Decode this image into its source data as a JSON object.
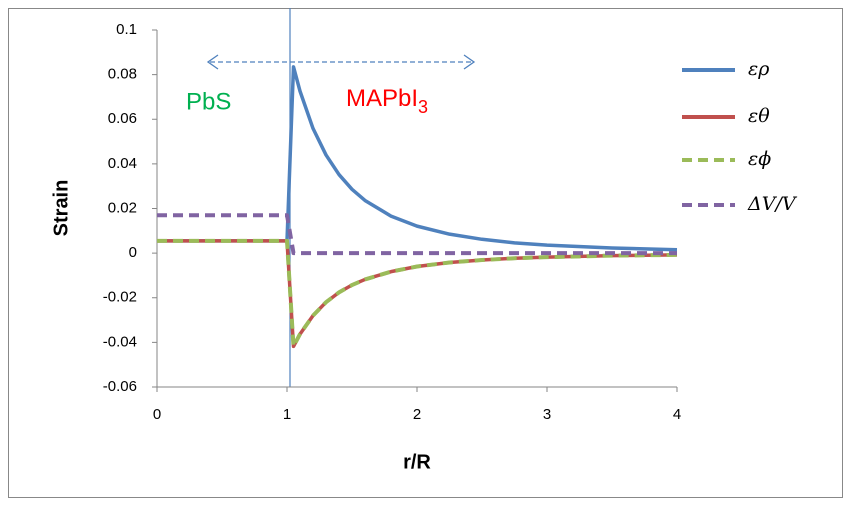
{
  "chart_data": {
    "type": "line",
    "x_label": "r/R",
    "y_label": "Strain",
    "annotations": [
      "PbS",
      "MAPbI3"
    ],
    "x": [
      0,
      0.5,
      1,
      1.05,
      1.1,
      1.2,
      1.3,
      1.4,
      1.5,
      1.6,
      1.8,
      2,
      2.25,
      2.5,
      2.75,
      3,
      3.5,
      4
    ],
    "series": [
      {
        "name": "ερ",
        "color": "#4f81bd",
        "dash": false,
        "values": [
          0.0055,
          0.0055,
          0.0055,
          0.0835,
          0.0726,
          0.0559,
          0.044,
          0.0352,
          0.0286,
          0.0236,
          0.0166,
          0.0121,
          0.0085,
          0.0062,
          0.0046,
          0.0036,
          0.0023,
          0.0015
        ]
      },
      {
        "name": "εθ",
        "color": "#c0504d",
        "dash": false,
        "values": [
          0.0055,
          0.0055,
          0.0055,
          -0.0418,
          -0.0363,
          -0.028,
          -0.022,
          -0.0176,
          -0.0143,
          -0.0118,
          -0.0083,
          -0.006,
          -0.0042,
          -0.0031,
          -0.0023,
          -0.0018,
          -0.0011,
          -0.0008
        ]
      },
      {
        "name": "εϕ",
        "color": "#9bbb59",
        "dash": true,
        "values": [
          0.0055,
          0.0055,
          0.0055,
          -0.0418,
          -0.0363,
          -0.028,
          -0.022,
          -0.0176,
          -0.0143,
          -0.0118,
          -0.0083,
          -0.006,
          -0.0042,
          -0.0031,
          -0.0023,
          -0.0018,
          -0.0011,
          -0.0008
        ]
      },
      {
        "name": "ΔV/V",
        "color": "#8064a2",
        "dash": true,
        "values": [
          0.017,
          0.017,
          0.017,
          0,
          0,
          0,
          0,
          0,
          0,
          0,
          0,
          0,
          0,
          0,
          0,
          0,
          0,
          0
        ]
      }
    ],
    "xlim": [
      0,
      4
    ],
    "xticks": [
      0,
      1,
      2,
      3,
      4
    ],
    "ylim": [
      -0.06,
      0.1
    ],
    "yticks": [
      -0.06,
      -0.04,
      -0.02,
      0,
      0.02,
      0.04,
      0.06,
      0.08,
      0.1
    ],
    "grid": false,
    "legend": "right"
  }
}
